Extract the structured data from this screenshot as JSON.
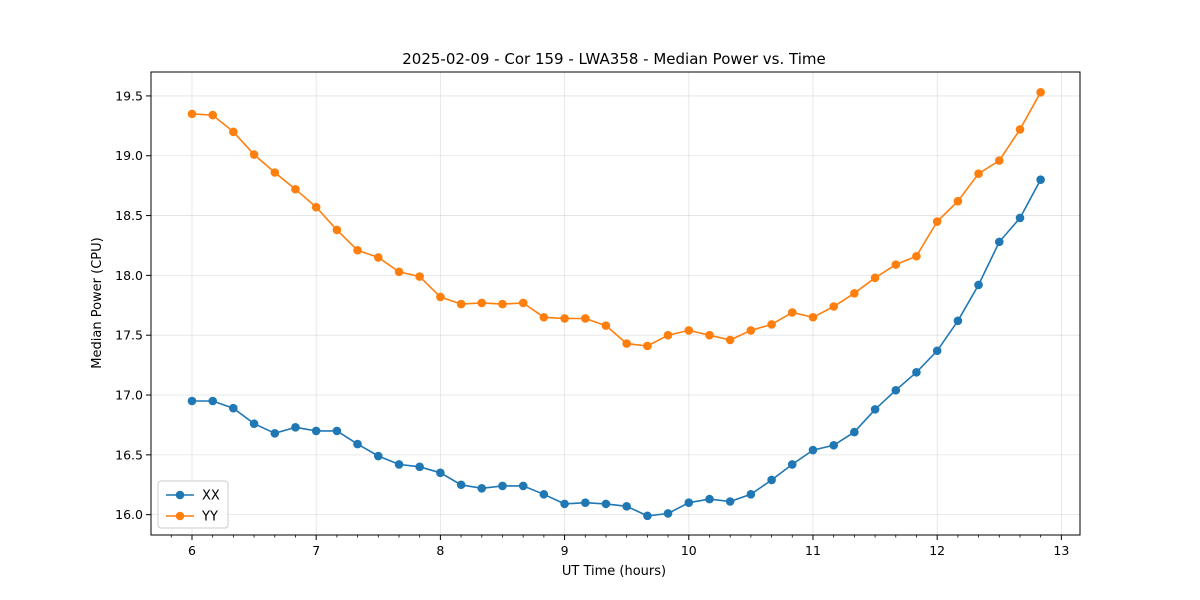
{
  "chart_data": {
    "type": "line",
    "title": "2025-02-09 - Cor 159 - LWA358 - Median Power vs. Time",
    "xlabel": "UT Time (hours)",
    "ylabel": "Median Power (CPU)",
    "xlim": [
      5.67,
      13.15
    ],
    "ylim": [
      15.83,
      19.7
    ],
    "x_ticks": [
      6,
      7,
      8,
      9,
      10,
      11,
      12,
      13
    ],
    "x_tick_labels": [
      "6",
      "7",
      "8",
      "9",
      "10",
      "11",
      "12",
      "13"
    ],
    "y_ticks": [
      16.0,
      16.5,
      17.0,
      17.5,
      18.0,
      18.5,
      19.0,
      19.5
    ],
    "y_tick_labels": [
      "16.0",
      "16.5",
      "17.0",
      "17.5",
      "18.0",
      "18.5",
      "19.0",
      "19.5"
    ],
    "grid": true,
    "legend_position": "lower-left",
    "x": [
      6.0,
      6.167,
      6.333,
      6.5,
      6.667,
      6.833,
      7.0,
      7.167,
      7.333,
      7.5,
      7.667,
      7.833,
      8.0,
      8.167,
      8.333,
      8.5,
      8.667,
      8.833,
      9.0,
      9.167,
      9.333,
      9.5,
      9.667,
      9.833,
      10.0,
      10.167,
      10.333,
      10.5,
      10.667,
      10.833,
      11.0,
      11.167,
      11.333,
      11.5,
      11.667,
      11.833,
      12.0,
      12.167,
      12.333,
      12.5,
      12.667,
      12.833
    ],
    "series": [
      {
        "name": "XX",
        "color": "#1f77b4",
        "values": [
          16.95,
          16.95,
          16.89,
          16.76,
          16.68,
          16.73,
          16.7,
          16.7,
          16.59,
          16.49,
          16.42,
          16.4,
          16.35,
          16.25,
          16.22,
          16.24,
          16.24,
          16.17,
          16.09,
          16.1,
          16.09,
          16.07,
          15.99,
          16.01,
          16.1,
          16.13,
          16.11,
          16.17,
          16.29,
          16.42,
          16.54,
          16.58,
          16.69,
          16.88,
          17.04,
          17.19,
          17.37,
          17.62,
          17.92,
          18.28,
          18.48,
          18.8
        ]
      },
      {
        "name": "YY",
        "color": "#ff7f0e",
        "values": [
          19.35,
          19.34,
          19.2,
          19.01,
          18.86,
          18.72,
          18.57,
          18.38,
          18.21,
          18.15,
          18.03,
          17.99,
          17.82,
          17.76,
          17.77,
          17.76,
          17.77,
          17.65,
          17.64,
          17.64,
          17.58,
          17.43,
          17.41,
          17.5,
          17.54,
          17.5,
          17.46,
          17.54,
          17.59,
          17.69,
          17.65,
          17.74,
          17.85,
          17.98,
          18.09,
          18.16,
          18.45,
          18.62,
          18.85,
          18.96,
          19.22,
          19.53
        ]
      }
    ]
  }
}
